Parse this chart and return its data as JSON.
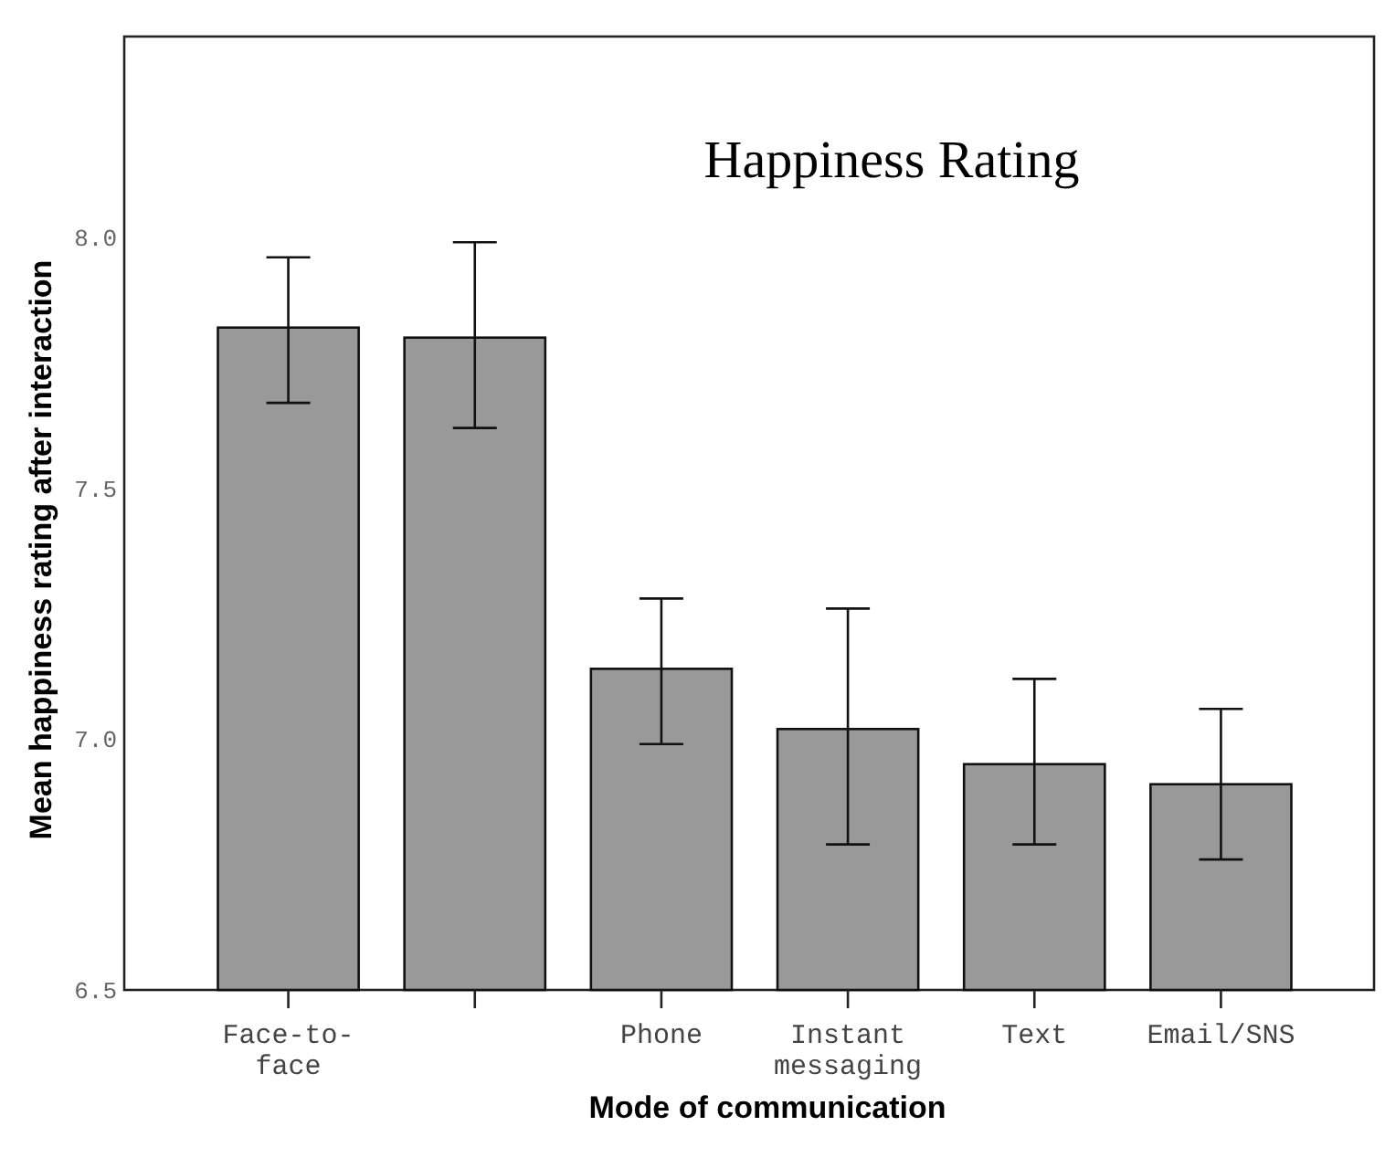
{
  "chart_data": {
    "type": "bar",
    "title": "Happiness Rating",
    "xlabel": "Mode of communication",
    "ylabel": "Mean happiness rating after interaction",
    "categories": [
      "Face-to-face",
      null,
      "Phone",
      "Instant messaging",
      "Text",
      "Email/SNS"
    ],
    "values": [
      7.82,
      7.8,
      7.14,
      7.02,
      6.95,
      6.91
    ],
    "errors": [
      [
        7.67,
        7.96
      ],
      [
        7.62,
        7.99
      ],
      [
        6.99,
        7.28
      ],
      [
        6.79,
        7.26
      ],
      [
        6.79,
        7.12
      ],
      [
        6.76,
        7.06
      ]
    ],
    "color": "#999999",
    "ylim": [
      6.5,
      8.4
    ],
    "yticks": [
      {
        "value": 6.5,
        "label": "6.5"
      },
      {
        "value": 7,
        "label": "7.0"
      },
      {
        "value": 7.5,
        "label": "7.5"
      },
      {
        "value": 8,
        "label": "8.0"
      }
    ],
    "grid": false
  }
}
